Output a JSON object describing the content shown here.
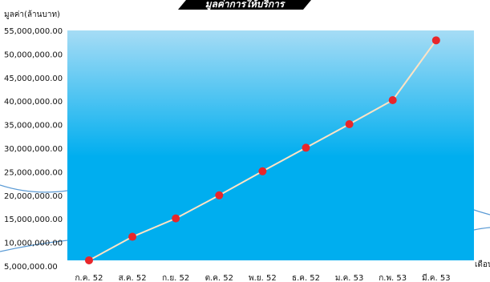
{
  "header": {
    "title": "มูลค่าการให้บริการ"
  },
  "chart_data": {
    "type": "line",
    "title": "",
    "ylabel": "มูลค่า(ล้านบาท)",
    "xlabel": "เดือน",
    "ylim": [
      5000000,
      55000000
    ],
    "ytick_labels": [
      "55,000,000.00",
      "50,000,000.00",
      "45,000,000.00",
      "40,000,000.00",
      "35,000,000.00",
      "30,000,000.00",
      "25,000,000.00",
      "20,000,000.00",
      "15,000,000.00",
      "10,000,000.00",
      "5,000,000.00"
    ],
    "yticks": [
      55000000,
      50000000,
      45000000,
      40000000,
      35000000,
      30000000,
      25000000,
      20000000,
      15000000,
      10000000,
      5000000
    ],
    "categories": [
      "ก.ค. 52",
      "ส.ค. 52",
      "ก.ย. 52",
      "ต.ค. 52",
      "พ.ย. 52",
      "ธ.ค. 52",
      "ม.ค. 53",
      "ก.พ. 53",
      "มี.ค. 53"
    ],
    "series": [
      {
        "values": [
          6200000,
          11200000,
          15100000,
          20000000,
          25100000,
          30100000,
          35100000,
          40200000,
          52900000
        ]
      }
    ],
    "grid": false,
    "colors": {
      "background_top": "#a6dcf5",
      "background_bottom": "#00aeef",
      "line": "#ffe3c4",
      "marker": "#e8262a",
      "decor_line": "#5b9bd5"
    }
  }
}
